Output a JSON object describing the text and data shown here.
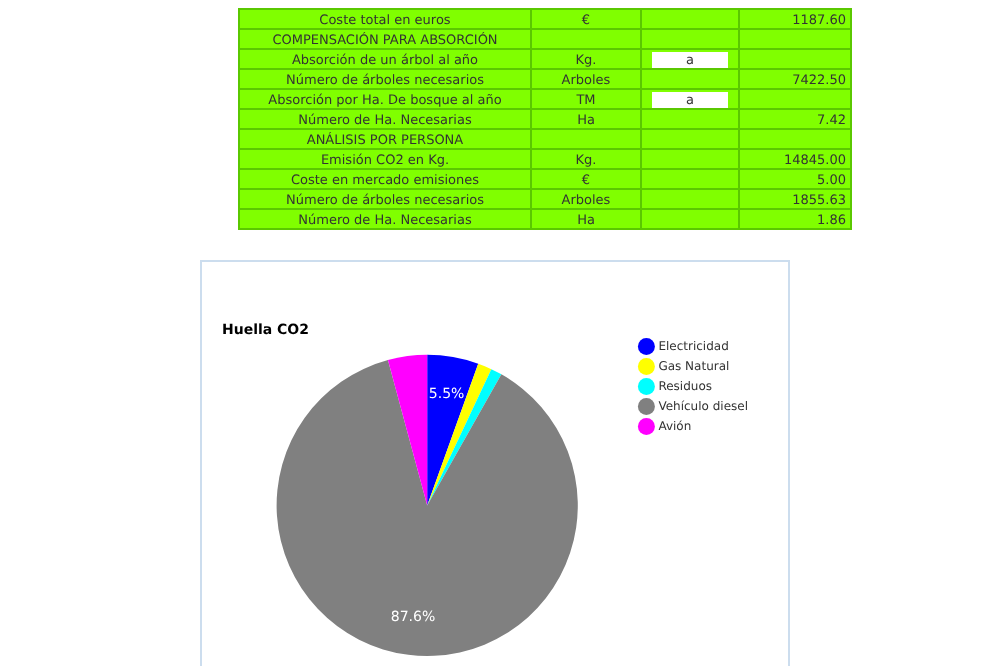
{
  "chart_data": {
    "type": "pie",
    "title": "Huella CO2",
    "categories": [
      "Electricidad",
      "Gas Natural",
      "Residuos",
      "Vehículo diesel",
      "Avión"
    ],
    "values": [
      5.5,
      1.5,
      1.2,
      87.6,
      4.2
    ],
    "colors": [
      "#0000ff",
      "#ffff00",
      "#00ffff",
      "#808080",
      "#ff00ff"
    ],
    "value_labels": [
      "5.5%",
      null,
      null,
      "87.6%",
      null
    ],
    "legend": "right",
    "annotations": [
      "Coste total en euros",
      "€",
      null,
      "1187.60",
      "COMPENSACIÓN PARA ABSORCIÓN",
      null,
      null,
      null,
      "Absorción de un árbol al año",
      "Kg.",
      "a",
      null,
      "Número de árboles necesarios",
      "Arboles",
      null,
      "7422.50",
      "Absorción por Ha. De bosque al año",
      "TM",
      "a",
      null,
      "Número de Ha. Necesarias",
      "Ha",
      null,
      "7.42",
      "ANÁLISIS POR PERSONA",
      null,
      null,
      null,
      "Emisión CO2 en Kg.",
      "Kg.",
      null,
      "14845.00",
      "Coste en mercado emisiones",
      "€",
      null,
      "5.00",
      "Número de árboles necesarios",
      "Arboles",
      null,
      "1855.63",
      "Número de Ha. Necesarias",
      "Ha",
      null,
      "1.86"
    ]
  }
}
